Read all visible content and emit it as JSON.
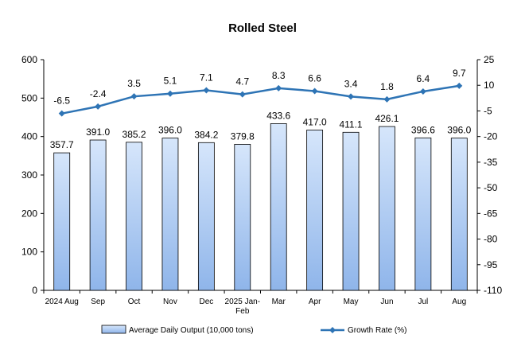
{
  "chart_data": {
    "type": "bar",
    "title": "Rolled Steel",
    "categories": [
      [
        "2024 Aug"
      ],
      [
        "Sep"
      ],
      [
        "Oct"
      ],
      [
        "Nov"
      ],
      [
        "Dec"
      ],
      [
        "2025 Jan-",
        "Feb"
      ],
      [
        "Mar"
      ],
      [
        "Apr"
      ],
      [
        "May"
      ],
      [
        "Jun"
      ],
      [
        "Jul"
      ],
      [
        "Aug"
      ]
    ],
    "series": [
      {
        "name": "Average Daily Output (10,000 tons)",
        "type": "bar",
        "axis": "left",
        "values": [
          357.7,
          391.0,
          385.2,
          396.0,
          384.2,
          379.8,
          433.6,
          417.0,
          411.1,
          426.1,
          396.6,
          396.0
        ],
        "labels": [
          "357.7",
          "391.0",
          "385.2",
          "396.0",
          "384.2",
          "379.8",
          "433.6",
          "417.0",
          "411.1",
          "426.1",
          "396.6",
          "396.0"
        ]
      },
      {
        "name": "Growth Rate (%)",
        "type": "line",
        "axis": "right",
        "values": [
          -6.5,
          -2.4,
          3.5,
          5.1,
          7.1,
          4.7,
          8.3,
          6.6,
          3.4,
          1.8,
          6.4,
          9.7
        ],
        "labels": [
          "-6.5",
          "-2.4",
          "3.5",
          "5.1",
          "7.1",
          "4.7",
          "8.3",
          "6.6",
          "3.4",
          "1.8",
          "6.4",
          "9.7"
        ]
      }
    ],
    "y_left": {
      "min": 0,
      "max": 600,
      "ticks": [
        0,
        100,
        200,
        300,
        400,
        500,
        600
      ]
    },
    "y_right": {
      "min": -110,
      "max": 25,
      "ticks": [
        25,
        10,
        -5,
        -20,
        -35,
        -50,
        -65,
        -80,
        -95,
        -110
      ]
    },
    "legend_position": "bottom",
    "grid": false,
    "colors": {
      "bar_fill_top": "#d6e6fb",
      "bar_fill_bottom": "#8fb5ea",
      "bar_stroke": "#000000",
      "line": "#2e74b5",
      "axis": "#000000"
    }
  }
}
